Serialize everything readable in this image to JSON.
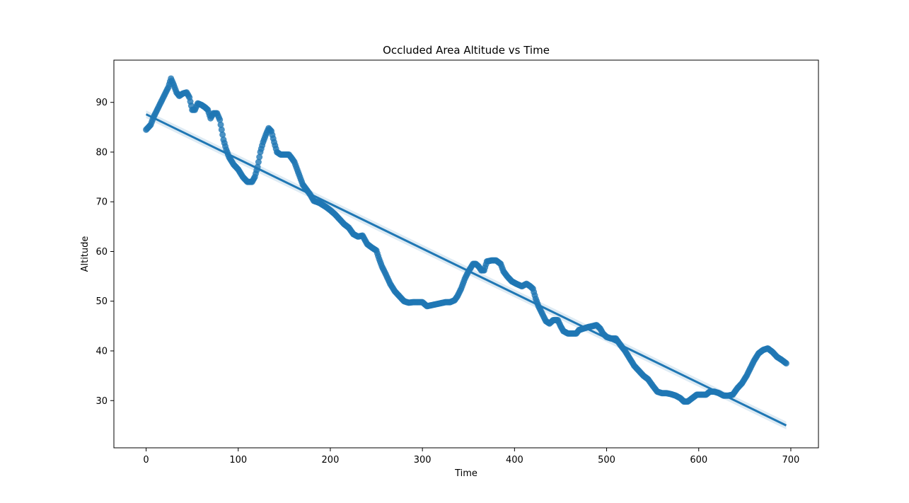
{
  "chart_data": {
    "type": "scatter",
    "title": "Occluded Area Altitude vs Time",
    "xlabel": "Time",
    "ylabel": "Altitude",
    "xlim": [
      -35,
      730
    ],
    "ylim": [
      20.5,
      98.5
    ],
    "xticks": [
      0,
      100,
      200,
      300,
      400,
      500,
      600,
      700
    ],
    "yticks": [
      30,
      40,
      50,
      60,
      70,
      80,
      90
    ],
    "grid": false,
    "color": "#1f77b4",
    "series": [
      {
        "points": [
          [
            0,
            84.5
          ],
          [
            5,
            85.5
          ],
          [
            8,
            87
          ],
          [
            12,
            88.5
          ],
          [
            16,
            90
          ],
          [
            20,
            91.5
          ],
          [
            24,
            93
          ],
          [
            27,
            94.8
          ],
          [
            30,
            93.5
          ],
          [
            33,
            92
          ],
          [
            36,
            91.3
          ],
          [
            40,
            91.8
          ],
          [
            44,
            92
          ],
          [
            47,
            91
          ],
          [
            50,
            88.5
          ],
          [
            53,
            88.5
          ],
          [
            56,
            89.8
          ],
          [
            60,
            89.5
          ],
          [
            64,
            89
          ],
          [
            67,
            88.5
          ],
          [
            70,
            86.8
          ],
          [
            73,
            87.8
          ],
          [
            77,
            87.8
          ],
          [
            80,
            86.5
          ],
          [
            82,
            84.5
          ],
          [
            84,
            82.5
          ],
          [
            87,
            80.5
          ],
          [
            90,
            79
          ],
          [
            95,
            77.5
          ],
          [
            100,
            76.5
          ],
          [
            105,
            75
          ],
          [
            110,
            74
          ],
          [
            115,
            74
          ],
          [
            118,
            75
          ],
          [
            121,
            77
          ],
          [
            124,
            80
          ],
          [
            127,
            82
          ],
          [
            130,
            83.5
          ],
          [
            133,
            84.8
          ],
          [
            136,
            84.2
          ],
          [
            139,
            82
          ],
          [
            142,
            80
          ],
          [
            146,
            79.5
          ],
          [
            150,
            79.5
          ],
          [
            155,
            79.5
          ],
          [
            158,
            78.8
          ],
          [
            161,
            78
          ],
          [
            164,
            76.5
          ],
          [
            167,
            75
          ],
          [
            170,
            73.5
          ],
          [
            174,
            72.5
          ],
          [
            178,
            71.5
          ],
          [
            182,
            70.2
          ],
          [
            188,
            69.8
          ],
          [
            195,
            69
          ],
          [
            200,
            68.3
          ],
          [
            205,
            67.5
          ],
          [
            210,
            66.5
          ],
          [
            215,
            65.5
          ],
          [
            220,
            64.8
          ],
          [
            225,
            63.5
          ],
          [
            230,
            63
          ],
          [
            235,
            63.2
          ],
          [
            240,
            61.5
          ],
          [
            245,
            60.8
          ],
          [
            250,
            60.2
          ],
          [
            253,
            58.5
          ],
          [
            256,
            57
          ],
          [
            260,
            55.5
          ],
          [
            265,
            53.5
          ],
          [
            270,
            52
          ],
          [
            275,
            51
          ],
          [
            280,
            50
          ],
          [
            285,
            49.7
          ],
          [
            290,
            49.8
          ],
          [
            295,
            49.8
          ],
          [
            300,
            49.8
          ],
          [
            305,
            49
          ],
          [
            310,
            49.2
          ],
          [
            315,
            49.4
          ],
          [
            320,
            49.6
          ],
          [
            325,
            49.8
          ],
          [
            330,
            49.8
          ],
          [
            335,
            50.2
          ],
          [
            338,
            51
          ],
          [
            342,
            52.5
          ],
          [
            346,
            54.5
          ],
          [
            350,
            56
          ],
          [
            355,
            57.5
          ],
          [
            358,
            57.5
          ],
          [
            361,
            57
          ],
          [
            364,
            56.2
          ],
          [
            367,
            56.2
          ],
          [
            370,
            58
          ],
          [
            375,
            58.2
          ],
          [
            380,
            58.2
          ],
          [
            385,
            57.5
          ],
          [
            388,
            56
          ],
          [
            392,
            55
          ],
          [
            397,
            54
          ],
          [
            402,
            53.5
          ],
          [
            408,
            53
          ],
          [
            413,
            53.5
          ],
          [
            417,
            53
          ],
          [
            420,
            52.5
          ],
          [
            423,
            50.5
          ],
          [
            426,
            49
          ],
          [
            430,
            47.5
          ],
          [
            434,
            46
          ],
          [
            438,
            45.5
          ],
          [
            442,
            46.2
          ],
          [
            447,
            46.2
          ],
          [
            450,
            45
          ],
          [
            453,
            44
          ],
          [
            458,
            43.5
          ],
          [
            463,
            43.5
          ],
          [
            467,
            43.5
          ],
          [
            470,
            44.2
          ],
          [
            475,
            44.5
          ],
          [
            480,
            44.8
          ],
          [
            485,
            45
          ],
          [
            489,
            45.2
          ],
          [
            493,
            44.5
          ],
          [
            496,
            43.5
          ],
          [
            500,
            42.8
          ],
          [
            505,
            42.5
          ],
          [
            510,
            42.5
          ],
          [
            515,
            41.2
          ],
          [
            520,
            40
          ],
          [
            525,
            38.5
          ],
          [
            530,
            37
          ],
          [
            535,
            36
          ],
          [
            540,
            35
          ],
          [
            545,
            34.3
          ],
          [
            550,
            33
          ],
          [
            555,
            31.8
          ],
          [
            560,
            31.5
          ],
          [
            565,
            31.5
          ],
          [
            570,
            31.3
          ],
          [
            575,
            31
          ],
          [
            580,
            30.5
          ],
          [
            584,
            29.8
          ],
          [
            588,
            29.8
          ],
          [
            593,
            30.5
          ],
          [
            598,
            31.2
          ],
          [
            603,
            31.2
          ],
          [
            608,
            31.2
          ],
          [
            612,
            31.8
          ],
          [
            617,
            31.8
          ],
          [
            622,
            31.5
          ],
          [
            627,
            31
          ],
          [
            632,
            31
          ],
          [
            637,
            31.2
          ],
          [
            642,
            32.5
          ],
          [
            647,
            33.5
          ],
          [
            652,
            35
          ],
          [
            656,
            36.5
          ],
          [
            660,
            38
          ],
          [
            665,
            39.5
          ],
          [
            670,
            40.2
          ],
          [
            675,
            40.5
          ],
          [
            680,
            39.8
          ],
          [
            685,
            38.8
          ],
          [
            690,
            38.2
          ],
          [
            695,
            37.5
          ]
        ]
      }
    ],
    "regression": {
      "x": [
        0,
        695
      ],
      "y": [
        87.6,
        25.0
      ],
      "ci_halfwidth": 0.6
    }
  }
}
